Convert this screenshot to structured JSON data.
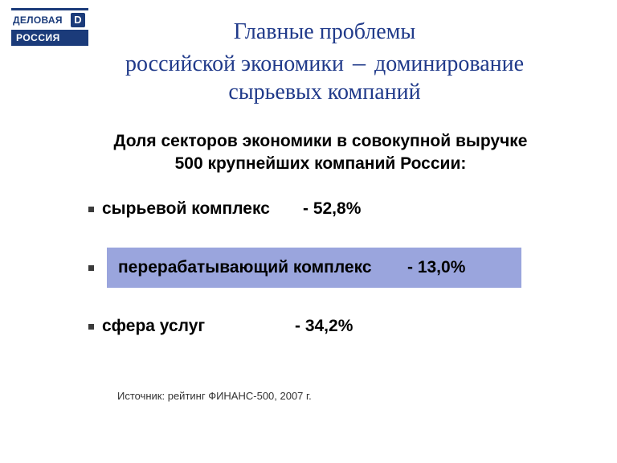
{
  "colors": {
    "brand_navy": "#1b3b7a",
    "title_color": "#203a8a",
    "highlight_bg": "#9aa5dd",
    "text": "#000000",
    "bullet": "#3b3b3b",
    "background": "#ffffff"
  },
  "logo": {
    "word1": "ДЕЛОВАЯ",
    "word2": "РОССИЯ",
    "initial": "D"
  },
  "title": {
    "line1": "Главные проблемы",
    "line2_a": "российской экономики",
    "dash": "–",
    "line2_b": "доминирование",
    "line3": "сырьевых компаний"
  },
  "subtitle": {
    "line1": "Доля секторов экономики в совокупной выручке",
    "line2": "500 крупнейших компаний России:"
  },
  "items": [
    {
      "label": "сырьевой комплекс",
      "value": "- 52,8%",
      "highlight": false
    },
    {
      "label": "перерабатывающий комплекс",
      "value": "- 13,0%",
      "highlight": true
    },
    {
      "label": "сфера услуг",
      "value": "- 34,2%",
      "highlight": false
    }
  ],
  "source": "Источник: рейтинг ФИНАНС-500, 2007 г."
}
